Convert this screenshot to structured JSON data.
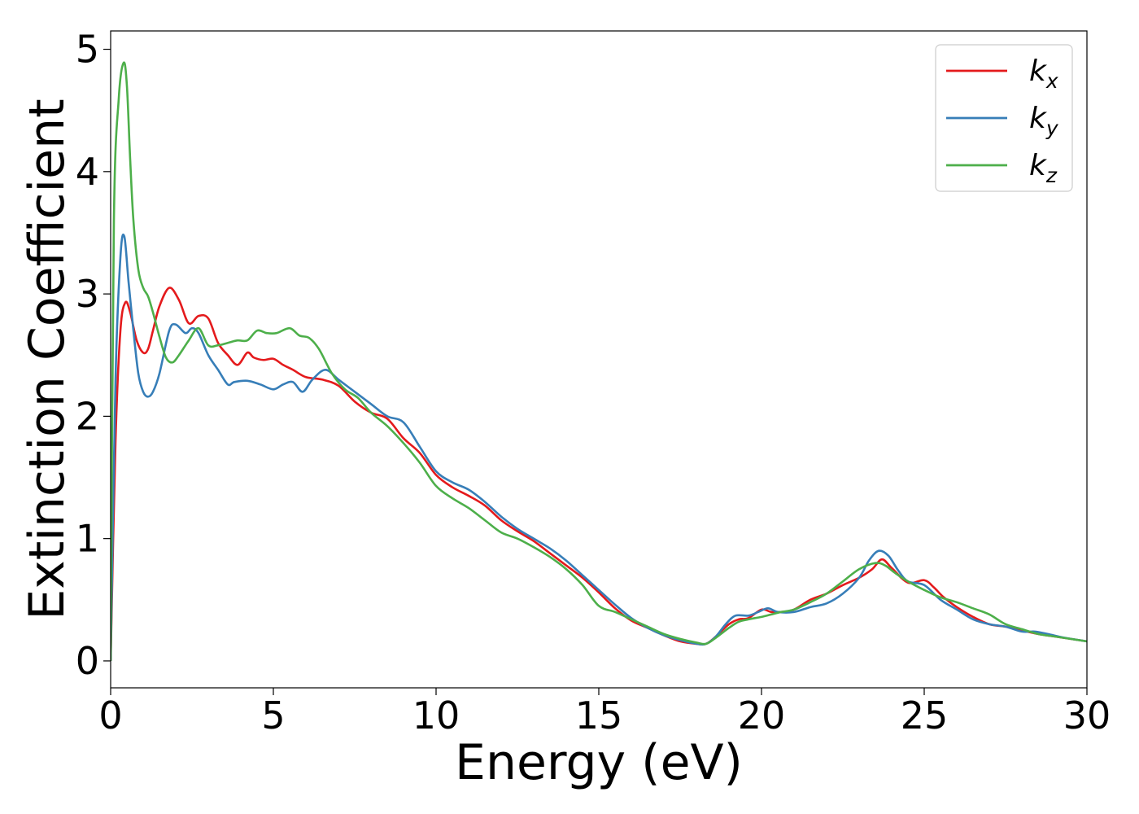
{
  "chart_data": {
    "type": "line",
    "xlabel": "Energy (eV)",
    "ylabel": "Extinction Coefficient",
    "xlim": [
      0,
      30
    ],
    "ylim": [
      -0.22,
      5.15
    ],
    "xticks": [
      0,
      5,
      10,
      15,
      20,
      25,
      30
    ],
    "yticks": [
      0,
      1,
      2,
      3,
      4,
      5
    ],
    "grid": false,
    "legend_position": "top-right",
    "series": [
      {
        "name": "k_x",
        "symbol": "k",
        "subscript": "x",
        "color": "#e41a1c",
        "x": [
          0,
          0.15,
          0.3,
          0.45,
          0.6,
          0.8,
          1.0,
          1.15,
          1.3,
          1.5,
          1.8,
          2.1,
          2.4,
          2.7,
          3.0,
          3.3,
          3.6,
          3.9,
          4.2,
          4.4,
          4.7,
          5.0,
          5.3,
          5.6,
          6.0,
          6.5,
          7.0,
          7.5,
          8.0,
          8.5,
          9.0,
          9.5,
          10.0,
          10.5,
          11.0,
          11.5,
          12.0,
          12.5,
          13.0,
          13.5,
          14.0,
          14.5,
          15.0,
          15.5,
          16.0,
          16.5,
          17.0,
          17.5,
          18.0,
          18.3,
          18.6,
          19.0,
          19.3,
          19.6,
          20.0,
          20.3,
          20.6,
          21.0,
          21.5,
          22.0,
          22.5,
          23.0,
          23.4,
          23.7,
          24.0,
          24.5,
          25.0,
          25.3,
          25.6,
          26.0,
          26.5,
          27.0,
          27.5,
          28.0,
          28.5,
          29.0,
          29.5,
          30.0
        ],
        "y": [
          0,
          1.8,
          2.7,
          2.93,
          2.85,
          2.62,
          2.52,
          2.55,
          2.7,
          2.9,
          3.05,
          2.95,
          2.76,
          2.82,
          2.8,
          2.6,
          2.5,
          2.42,
          2.52,
          2.48,
          2.46,
          2.47,
          2.42,
          2.38,
          2.32,
          2.3,
          2.25,
          2.12,
          2.03,
          1.98,
          1.82,
          1.7,
          1.52,
          1.42,
          1.35,
          1.27,
          1.15,
          1.06,
          0.98,
          0.88,
          0.78,
          0.68,
          0.56,
          0.43,
          0.33,
          0.27,
          0.21,
          0.16,
          0.14,
          0.14,
          0.2,
          0.3,
          0.34,
          0.35,
          0.42,
          0.4,
          0.4,
          0.42,
          0.5,
          0.55,
          0.62,
          0.68,
          0.75,
          0.83,
          0.76,
          0.64,
          0.66,
          0.6,
          0.52,
          0.44,
          0.36,
          0.3,
          0.28,
          0.25,
          0.22,
          0.2,
          0.18,
          0.16
        ]
      },
      {
        "name": "k_y",
        "symbol": "k",
        "subscript": "y",
        "color": "#377eb8",
        "x": [
          0,
          0.15,
          0.3,
          0.42,
          0.55,
          0.7,
          0.85,
          1.0,
          1.15,
          1.3,
          1.5,
          1.8,
          2.0,
          2.3,
          2.5,
          2.7,
          3.0,
          3.3,
          3.6,
          3.8,
          4.2,
          4.6,
          5.0,
          5.3,
          5.6,
          5.9,
          6.2,
          6.6,
          7.0,
          7.5,
          8.0,
          8.5,
          9.0,
          9.5,
          10.0,
          10.5,
          11.0,
          11.5,
          12.0,
          12.5,
          13.0,
          13.5,
          14.0,
          14.5,
          15.0,
          15.5,
          16.0,
          16.5,
          17.0,
          17.5,
          18.0,
          18.3,
          18.6,
          18.9,
          19.2,
          19.6,
          19.9,
          20.2,
          20.5,
          21.0,
          21.5,
          22.0,
          22.5,
          23.0,
          23.3,
          23.6,
          23.9,
          24.2,
          24.5,
          25.0,
          25.5,
          26.0,
          26.5,
          27.0,
          27.5,
          28.0,
          28.4,
          28.8,
          29.3,
          30.0
        ],
        "y": [
          0,
          2.3,
          3.3,
          3.47,
          3.1,
          2.7,
          2.35,
          2.2,
          2.16,
          2.2,
          2.35,
          2.7,
          2.75,
          2.68,
          2.72,
          2.68,
          2.5,
          2.38,
          2.26,
          2.28,
          2.29,
          2.26,
          2.22,
          2.26,
          2.28,
          2.2,
          2.3,
          2.38,
          2.3,
          2.2,
          2.1,
          2.0,
          1.95,
          1.75,
          1.55,
          1.46,
          1.4,
          1.3,
          1.18,
          1.08,
          1.0,
          0.92,
          0.82,
          0.7,
          0.58,
          0.46,
          0.35,
          0.27,
          0.21,
          0.17,
          0.14,
          0.14,
          0.2,
          0.3,
          0.37,
          0.37,
          0.4,
          0.43,
          0.4,
          0.4,
          0.44,
          0.47,
          0.55,
          0.68,
          0.82,
          0.9,
          0.86,
          0.74,
          0.65,
          0.62,
          0.5,
          0.42,
          0.34,
          0.3,
          0.28,
          0.24,
          0.24,
          0.22,
          0.19,
          0.16
        ]
      },
      {
        "name": "k_z",
        "symbol": "k",
        "subscript": "z",
        "color": "#4daf4a",
        "x": [
          0,
          0.1,
          0.25,
          0.4,
          0.5,
          0.6,
          0.7,
          0.85,
          1.0,
          1.15,
          1.3,
          1.5,
          1.7,
          1.9,
          2.1,
          2.4,
          2.7,
          3.0,
          3.3,
          3.6,
          3.9,
          4.2,
          4.5,
          4.8,
          5.1,
          5.5,
          5.8,
          6.1,
          6.4,
          6.8,
          7.2,
          7.6,
          8.0,
          8.5,
          9.0,
          9.5,
          10.0,
          10.5,
          11.0,
          11.5,
          12.0,
          12.5,
          13.0,
          13.5,
          14.0,
          14.5,
          15.0,
          15.5,
          16.0,
          16.5,
          17.0,
          17.5,
          18.0,
          18.3,
          18.6,
          19.0,
          19.3,
          19.6,
          20.0,
          20.3,
          20.6,
          21.0,
          21.5,
          22.0,
          22.5,
          23.0,
          23.5,
          23.8,
          24.1,
          24.5,
          25.0,
          25.5,
          26.0,
          26.5,
          27.0,
          27.5,
          28.0,
          28.5,
          29.0,
          29.5,
          30.0
        ],
        "y": [
          0,
          3.6,
          4.6,
          4.89,
          4.7,
          4.1,
          3.6,
          3.2,
          3.05,
          2.98,
          2.85,
          2.65,
          2.48,
          2.44,
          2.5,
          2.62,
          2.72,
          2.58,
          2.58,
          2.6,
          2.62,
          2.62,
          2.7,
          2.68,
          2.68,
          2.72,
          2.66,
          2.64,
          2.55,
          2.35,
          2.22,
          2.15,
          2.03,
          1.92,
          1.78,
          1.62,
          1.43,
          1.33,
          1.25,
          1.15,
          1.05,
          1.0,
          0.93,
          0.85,
          0.75,
          0.62,
          0.45,
          0.4,
          0.34,
          0.28,
          0.22,
          0.18,
          0.15,
          0.14,
          0.19,
          0.27,
          0.32,
          0.34,
          0.36,
          0.38,
          0.4,
          0.42,
          0.48,
          0.55,
          0.65,
          0.75,
          0.8,
          0.78,
          0.72,
          0.65,
          0.58,
          0.52,
          0.48,
          0.43,
          0.38,
          0.3,
          0.26,
          0.22,
          0.2,
          0.18,
          0.16
        ]
      }
    ]
  }
}
